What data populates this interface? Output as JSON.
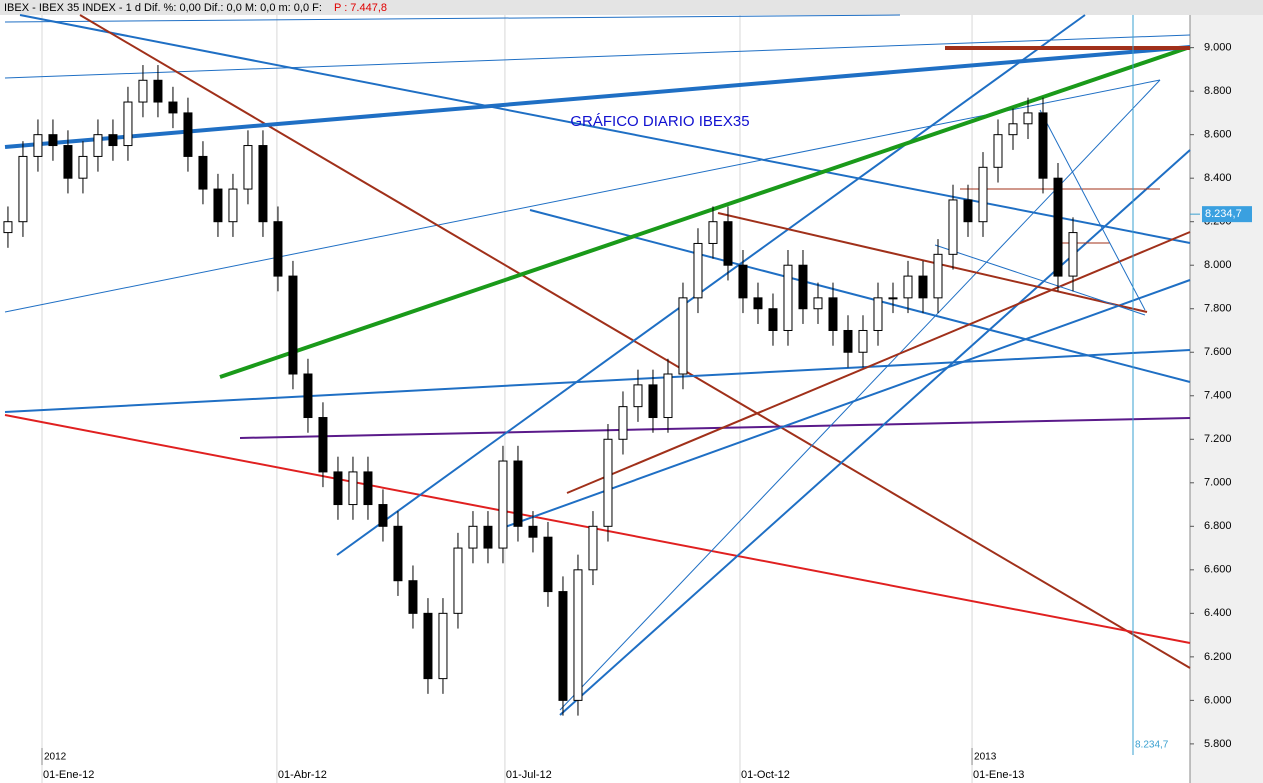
{
  "chart_data": {
    "type": "candlestick",
    "header": "IBEX - IBEX 35 INDEX - 1 d Dif. %: 0,00 Dif.: 0,0 M: 0,0 m: 0,0 F:",
    "header_price": "P : 7.447,8",
    "annotation": "GRÁFICO DIARIO IBEX35",
    "categories": [
      null,
      null,
      null,
      null,
      null,
      null,
      null,
      null,
      null,
      null,
      null,
      null,
      null,
      null,
      null,
      null,
      null,
      null,
      null,
      null,
      null,
      null,
      null,
      null,
      null,
      null,
      null,
      null,
      null,
      null,
      null,
      null,
      null,
      null,
      null,
      null,
      null,
      null,
      null,
      null,
      null,
      null,
      null,
      null,
      null,
      null,
      null,
      null,
      null,
      null,
      null,
      null,
      null,
      null,
      null,
      null,
      null,
      null,
      null,
      null,
      null,
      null,
      null,
      null,
      null,
      null,
      null,
      null,
      null,
      null,
      null,
      null
    ],
    "open": [
      8150,
      8200,
      8500,
      8600,
      8550,
      8400,
      8500,
      8600,
      8550,
      8750,
      8850,
      8750,
      8700,
      8500,
      8350,
      8200,
      8350,
      8550,
      8200,
      7950,
      7500,
      7300,
      7050,
      6900,
      7050,
      6900,
      6800,
      6550,
      6400,
      6100,
      6400,
      6700,
      6800,
      6700,
      7100,
      6800,
      6750,
      6500,
      6000,
      6600,
      6800,
      7200,
      7350,
      7450,
      7300,
      7500,
      7850,
      8100,
      8200,
      8000,
      7850,
      7800,
      7700,
      8000,
      7800,
      7850,
      7700,
      7600,
      7700,
      7850,
      7850,
      7950,
      7850,
      8050,
      8300,
      8200,
      8450,
      8600,
      8650,
      8700,
      8400,
      7950
    ],
    "high": [
      8270,
      8570,
      8670,
      8670,
      8620,
      8570,
      8670,
      8670,
      8820,
      8920,
      8920,
      8820,
      8770,
      8570,
      8420,
      8420,
      8620,
      8620,
      8270,
      8020,
      7570,
      7370,
      7120,
      7120,
      7120,
      6970,
      6870,
      6620,
      6470,
      6470,
      6770,
      6870,
      6870,
      7170,
      7170,
      6870,
      6820,
      6570,
      6670,
      6870,
      7270,
      7420,
      7520,
      7520,
      7570,
      7920,
      8170,
      8270,
      8270,
      8070,
      7920,
      7870,
      8070,
      8070,
      7920,
      7920,
      7770,
      7770,
      7920,
      7920,
      8020,
      8020,
      8120,
      8370,
      8370,
      8520,
      8670,
      8720,
      8770,
      8770,
      8470,
      8220
    ],
    "low": [
      8080,
      8130,
      8430,
      8480,
      8330,
      8330,
      8430,
      8480,
      8480,
      8680,
      8680,
      8630,
      8430,
      8280,
      8130,
      8130,
      8280,
      8130,
      7880,
      7430,
      7230,
      6980,
      6830,
      6830,
      6830,
      6730,
      6480,
      6330,
      6030,
      6030,
      6330,
      6630,
      6630,
      6630,
      6730,
      6680,
      6430,
      5930,
      5930,
      6530,
      6730,
      7130,
      7280,
      7230,
      7230,
      7430,
      7780,
      8030,
      7930,
      7780,
      7730,
      7630,
      7630,
      7730,
      7730,
      7630,
      7530,
      7530,
      7630,
      7780,
      7780,
      7780,
      7780,
      7980,
      8130,
      8130,
      8380,
      8530,
      8580,
      8330,
      7880,
      7880
    ],
    "close": [
      8200,
      8500,
      8600,
      8550,
      8400,
      8500,
      8600,
      8550,
      8750,
      8850,
      8750,
      8700,
      8500,
      8350,
      8200,
      8350,
      8550,
      8200,
      7950,
      7500,
      7300,
      7050,
      6900,
      7050,
      6900,
      6800,
      6550,
      6400,
      6100,
      6400,
      6700,
      6800,
      6700,
      7100,
      6800,
      6750,
      6500,
      6000,
      6600,
      6800,
      7200,
      7350,
      7450,
      7300,
      7500,
      7850,
      8100,
      8200,
      8000,
      7850,
      7800,
      7700,
      8000,
      7800,
      7850,
      7700,
      7600,
      7700,
      7850,
      7850,
      7950,
      7850,
      8050,
      8300,
      8200,
      8450,
      8600,
      8650,
      8700,
      8400,
      7950,
      8150
    ],
    "xlim": [
      -0.53,
      78.8
    ],
    "xticks": [
      {
        "value": 2.27,
        "label": "01-Ene-12"
      },
      {
        "value": 17.93,
        "label": "01-Abr-12"
      },
      {
        "value": 33.13,
        "label": "01-Jul-12"
      },
      {
        "value": 48.8,
        "label": "01-Oct-12"
      },
      {
        "value": 64.27,
        "label": "01-Ene-13"
      }
    ],
    "year_ticks": [
      {
        "value": 2.27,
        "label": "2012"
      },
      {
        "value": 64.27,
        "label": "2013"
      }
    ],
    "ylim": [
      5680,
      9150
    ],
    "yticks": [
      {
        "value": 5800,
        "label": "5.800"
      },
      {
        "value": 6000,
        "label": "6.000"
      },
      {
        "value": 6200,
        "label": "6.200"
      },
      {
        "value": 6400,
        "label": "6.400"
      },
      {
        "value": 6600,
        "label": "6.600"
      },
      {
        "value": 6800,
        "label": "6.800"
      },
      {
        "value": 7000,
        "label": "7.000"
      },
      {
        "value": 7200,
        "label": "7.200"
      },
      {
        "value": 7400,
        "label": "7.400"
      },
      {
        "value": 7600,
        "label": "7.600"
      },
      {
        "value": 7800,
        "label": "7.800"
      },
      {
        "value": 8000,
        "label": "8.000"
      },
      {
        "value": 8200,
        "label": "8.200"
      },
      {
        "value": 8400,
        "label": "8.400"
      },
      {
        "value": 8600,
        "label": "8.600"
      },
      {
        "value": 8800,
        "label": "8.800"
      },
      {
        "value": 9000,
        "label": "9.000"
      }
    ],
    "last_price": {
      "value": 8234.7,
      "label": "8.234,7"
    },
    "up_color": "#ffffff",
    "down_color": "#000000"
  }
}
